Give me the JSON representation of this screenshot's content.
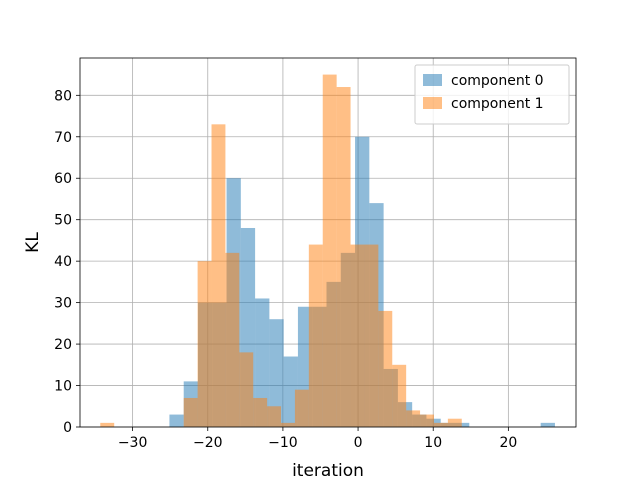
{
  "chart_data": {
    "type": "bar",
    "subtype": "histogram-overlay",
    "title": "",
    "xlabel": "iteration",
    "ylabel": "KL",
    "xlim": [
      -37,
      29
    ],
    "ylim": [
      0,
      89
    ],
    "xticks": [
      -30,
      -20,
      -10,
      0,
      10,
      20
    ],
    "yticks": [
      0,
      10,
      20,
      30,
      40,
      50,
      60,
      70,
      80
    ],
    "grid": true,
    "legend_position": "top-right",
    "series": [
      {
        "name": "component 0",
        "color": "#1f77b4",
        "alpha": 0.5,
        "bins": [
          {
            "x0": -25.1,
            "x1": -23.2,
            "value": 3
          },
          {
            "x0": -23.2,
            "x1": -21.3,
            "value": 11
          },
          {
            "x0": -21.3,
            "x1": -19.4,
            "value": 30
          },
          {
            "x0": -19.4,
            "x1": -17.5,
            "value": 30
          },
          {
            "x0": -17.5,
            "x1": -15.6,
            "value": 60
          },
          {
            "x0": -15.6,
            "x1": -13.7,
            "value": 48
          },
          {
            "x0": -13.7,
            "x1": -11.8,
            "value": 31
          },
          {
            "x0": -11.8,
            "x1": -9.9,
            "value": 26
          },
          {
            "x0": -9.9,
            "x1": -8.0,
            "value": 17
          },
          {
            "x0": -8.0,
            "x1": -6.1,
            "value": 29
          },
          {
            "x0": -6.1,
            "x1": -4.2,
            "value": 29
          },
          {
            "x0": -4.2,
            "x1": -2.3,
            "value": 35
          },
          {
            "x0": -2.3,
            "x1": -0.4,
            "value": 42
          },
          {
            "x0": -0.4,
            "x1": 1.5,
            "value": 70
          },
          {
            "x0": 1.5,
            "x1": 3.4,
            "value": 54
          },
          {
            "x0": 3.4,
            "x1": 5.3,
            "value": 14
          },
          {
            "x0": 5.3,
            "x1": 7.2,
            "value": 6
          },
          {
            "x0": 7.2,
            "x1": 9.1,
            "value": 3
          },
          {
            "x0": 9.1,
            "x1": 11.0,
            "value": 2
          },
          {
            "x0": 11.0,
            "x1": 12.9,
            "value": 1
          },
          {
            "x0": 12.9,
            "x1": 14.8,
            "value": 1
          },
          {
            "x0": 14.8,
            "x1": 16.7,
            "value": 0
          },
          {
            "x0": 16.7,
            "x1": 18.6,
            "value": 0
          },
          {
            "x0": 18.6,
            "x1": 20.5,
            "value": 0
          },
          {
            "x0": 20.5,
            "x1": 22.4,
            "value": 0
          },
          {
            "x0": 22.4,
            "x1": 24.3,
            "value": 0
          },
          {
            "x0": 24.3,
            "x1": 26.2,
            "value": 1
          }
        ]
      },
      {
        "name": "component 1",
        "color": "#ff7f0e",
        "alpha": 0.5,
        "bins": [
          {
            "x0": -34.3,
            "x1": -32.45,
            "value": 1
          },
          {
            "x0": -32.45,
            "x1": -30.6,
            "value": 0
          },
          {
            "x0": -30.6,
            "x1": -28.75,
            "value": 0
          },
          {
            "x0": -28.75,
            "x1": -26.9,
            "value": 0
          },
          {
            "x0": -26.9,
            "x1": -25.05,
            "value": 0
          },
          {
            "x0": -25.05,
            "x1": -23.2,
            "value": 0
          },
          {
            "x0": -23.2,
            "x1": -21.35,
            "value": 7
          },
          {
            "x0": -21.35,
            "x1": -19.5,
            "value": 40
          },
          {
            "x0": -19.5,
            "x1": -17.65,
            "value": 73
          },
          {
            "x0": -17.65,
            "x1": -15.8,
            "value": 42
          },
          {
            "x0": -15.8,
            "x1": -13.95,
            "value": 18
          },
          {
            "x0": -13.95,
            "x1": -12.1,
            "value": 7
          },
          {
            "x0": -12.1,
            "x1": -10.25,
            "value": 5
          },
          {
            "x0": -10.25,
            "x1": -8.4,
            "value": 1
          },
          {
            "x0": -8.4,
            "x1": -6.55,
            "value": 9
          },
          {
            "x0": -6.55,
            "x1": -4.7,
            "value": 44
          },
          {
            "x0": -4.7,
            "x1": -2.85,
            "value": 85
          },
          {
            "x0": -2.85,
            "x1": -1.0,
            "value": 82
          },
          {
            "x0": -1.0,
            "x1": 0.85,
            "value": 44
          },
          {
            "x0": 0.85,
            "x1": 2.7,
            "value": 44
          },
          {
            "x0": 2.7,
            "x1": 4.55,
            "value": 28
          },
          {
            "x0": 4.55,
            "x1": 6.4,
            "value": 15
          },
          {
            "x0": 6.4,
            "x1": 8.25,
            "value": 4
          },
          {
            "x0": 8.25,
            "x1": 10.1,
            "value": 3
          },
          {
            "x0": 10.1,
            "x1": 11.95,
            "value": 1
          },
          {
            "x0": 11.95,
            "x1": 13.8,
            "value": 2
          }
        ]
      }
    ]
  }
}
